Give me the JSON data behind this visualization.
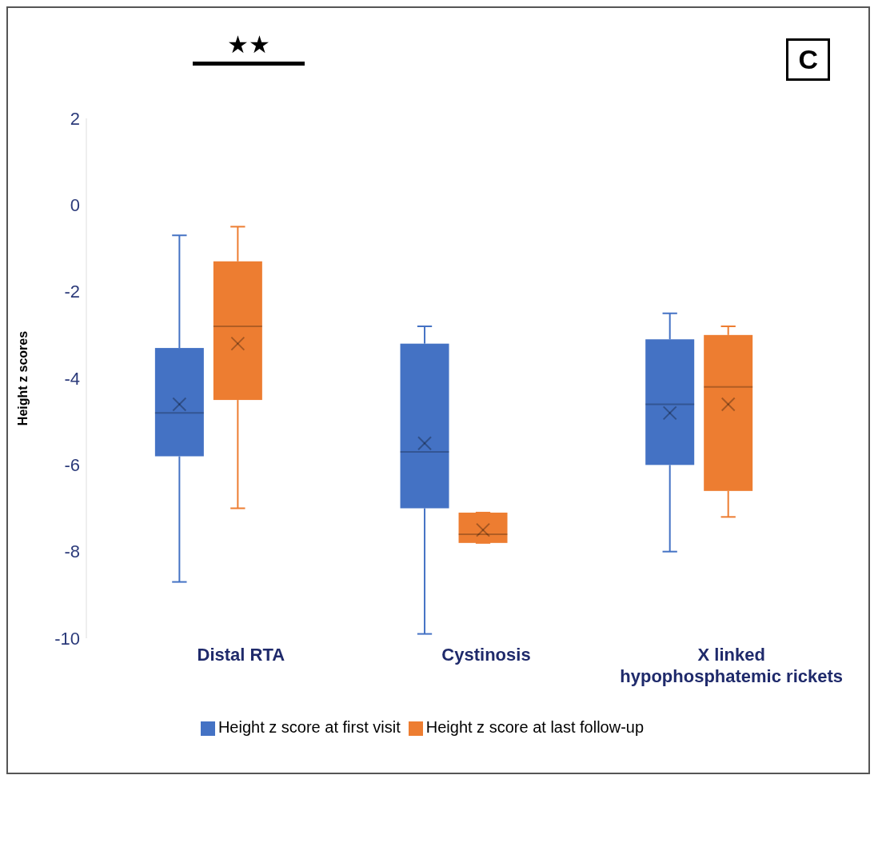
{
  "chart_data": {
    "type": "box",
    "ylabel": "Height z scores",
    "categories": [
      "Distal RTA",
      "Cystinosis",
      "X linked hypophosphatemic rickets"
    ],
    "ylim": [
      -10,
      2
    ],
    "yticks": [
      2,
      0,
      -2,
      -4,
      -6,
      -8,
      -10
    ],
    "legend": "bottom",
    "annotations": [
      "★★",
      "C"
    ],
    "series": [
      {
        "name": "Height z score at first visit",
        "color": "#4472c4",
        "boxes": [
          {
            "low": -8.7,
            "q1": -5.8,
            "median": -4.8,
            "q3": -3.3,
            "high": -0.7,
            "mean": -4.6
          },
          {
            "low": -9.9,
            "q1": -7.0,
            "median": -5.7,
            "q3": -3.2,
            "high": -2.8,
            "mean": -5.5
          },
          {
            "low": -8.0,
            "q1": -6.0,
            "median": -4.6,
            "q3": -3.1,
            "high": -2.5,
            "mean": -4.8
          }
        ]
      },
      {
        "name": "Height z score at last follow-up",
        "color": "#ed7d31",
        "boxes": [
          {
            "low": -7.0,
            "q1": -4.5,
            "median": -2.8,
            "q3": -1.3,
            "high": -0.5,
            "mean": -3.2
          },
          {
            "low": -7.8,
            "q1": -7.8,
            "median": -7.6,
            "q3": -7.1,
            "high": -7.1,
            "mean": -7.5
          },
          {
            "low": -7.2,
            "q1": -6.6,
            "median": -4.2,
            "q3": -3.0,
            "high": -2.8,
            "mean": -4.6
          }
        ]
      }
    ]
  }
}
